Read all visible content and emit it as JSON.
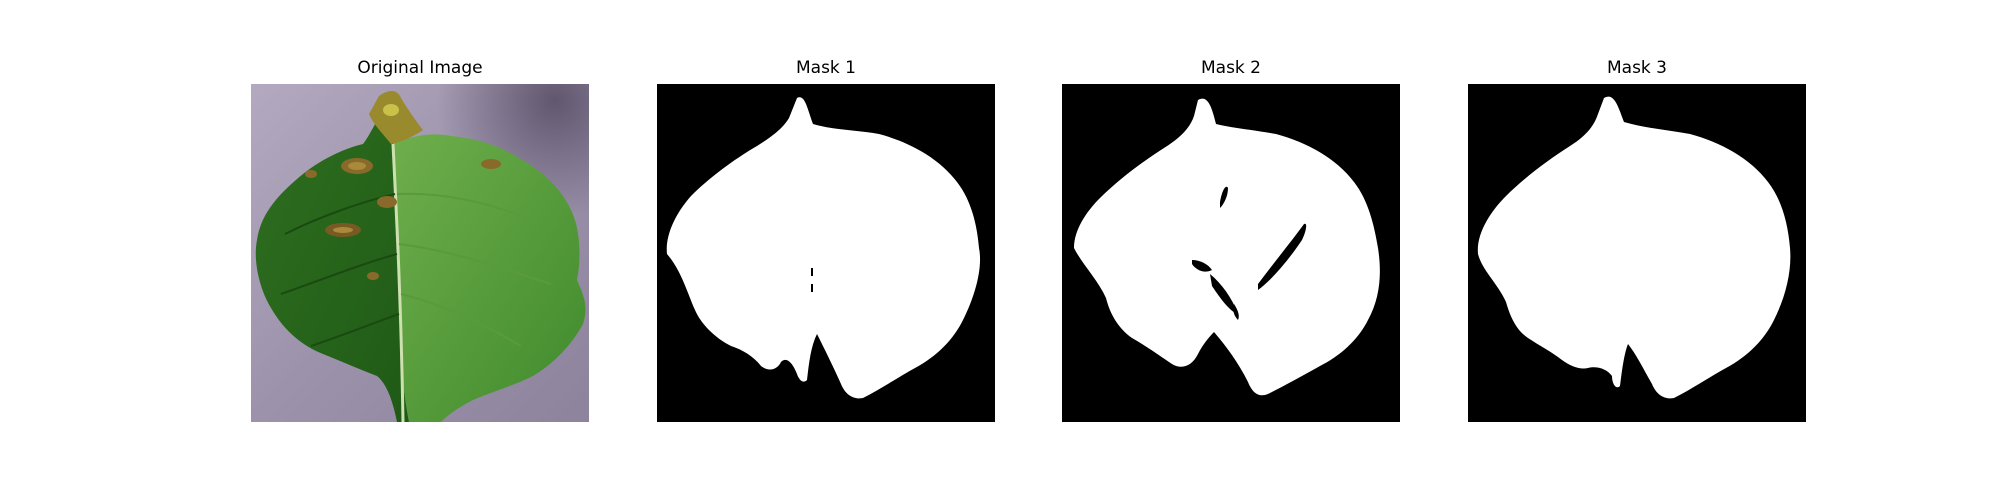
{
  "figure": {
    "panels": [
      {
        "title": "Original Image",
        "kind": "photo"
      },
      {
        "title": "Mask 1",
        "kind": "mask"
      },
      {
        "title": "Mask 2",
        "kind": "mask"
      },
      {
        "title": "Mask 3",
        "kind": "mask"
      }
    ]
  },
  "colors": {
    "background": "#ffffff",
    "mask_background": "#000000",
    "mask_foreground": "#ffffff",
    "photo_surface": "#9d93ac",
    "leaf_green": "#3f8a2c",
    "leaf_dark": "#245f1a",
    "lesion_brown": "#8a6a2a",
    "lesion_yellow": "#c9c24a"
  }
}
